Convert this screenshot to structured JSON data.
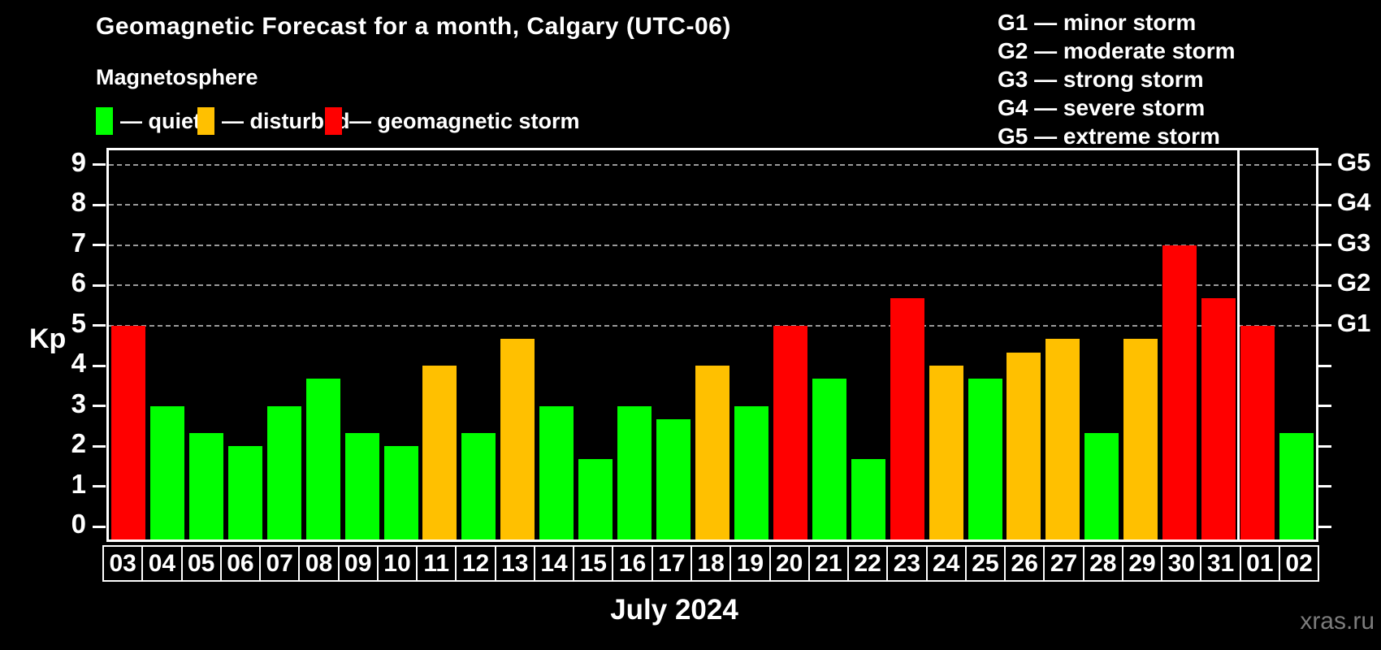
{
  "header": {
    "title": "Geomagnetic Forecast for a month, Calgary (UTC-06)",
    "subtitle": "Magnetosphere"
  },
  "legend": {
    "items": [
      {
        "name": "quiet",
        "label": "— quiet",
        "color": "#00ff00"
      },
      {
        "name": "disturbed",
        "label": "— disturbed",
        "color": "#ffc000"
      },
      {
        "name": "storm",
        "label": "— geomagnetic storm",
        "color": "#ff0000"
      }
    ]
  },
  "g_scale_legend": {
    "lines": [
      "G1 — minor storm",
      "G2 — moderate storm",
      "G3 — strong storm",
      "G4 — severe storm",
      "G5 — extreme storm"
    ]
  },
  "axes": {
    "y_label": "Kp",
    "y_ticks": [
      0,
      1,
      2,
      3,
      4,
      5,
      6,
      7,
      8,
      9
    ],
    "right_levels": [
      {
        "kp": 5,
        "label": "G1"
      },
      {
        "kp": 6,
        "label": "G2"
      },
      {
        "kp": 7,
        "label": "G3"
      },
      {
        "kp": 8,
        "label": "G4"
      },
      {
        "kp": 9,
        "label": "G5"
      }
    ],
    "x_label": "July 2024"
  },
  "watermark": "xras.ru",
  "chart_data": {
    "type": "bar",
    "title": "Geomagnetic Forecast for a month, Calgary (UTC-06)",
    "subtitle": "Magnetosphere",
    "xlabel": "July 2024",
    "ylabel": "Kp",
    "ylim": [
      0,
      9
    ],
    "grid": "horizontal dashed lines at Kp 5,6,7,8,9",
    "gridlines_at": [
      5,
      6,
      7,
      8,
      9
    ],
    "legend_position": "top",
    "categories": [
      "03",
      "04",
      "05",
      "06",
      "07",
      "08",
      "09",
      "10",
      "11",
      "12",
      "13",
      "14",
      "15",
      "16",
      "17",
      "18",
      "19",
      "20",
      "21",
      "22",
      "23",
      "24",
      "25",
      "26",
      "27",
      "28",
      "29",
      "30",
      "31",
      "01",
      "02"
    ],
    "values": [
      5,
      3,
      2.33,
      2,
      3,
      3.67,
      2.33,
      2,
      4,
      2.33,
      4.67,
      3,
      1.67,
      3,
      2.67,
      4,
      3,
      5,
      3.67,
      1.67,
      5.67,
      4,
      3.67,
      4.33,
      4.67,
      2.33,
      4.67,
      7,
      5.67,
      5,
      2.33
    ],
    "statuses": [
      "storm",
      "quiet",
      "quiet",
      "quiet",
      "quiet",
      "quiet",
      "quiet",
      "quiet",
      "disturbed",
      "quiet",
      "disturbed",
      "quiet",
      "quiet",
      "quiet",
      "quiet",
      "disturbed",
      "quiet",
      "storm",
      "quiet",
      "quiet",
      "storm",
      "disturbed",
      "quiet",
      "disturbed",
      "disturbed",
      "quiet",
      "disturbed",
      "storm",
      "storm",
      "storm",
      "quiet"
    ],
    "status_colors": {
      "quiet": "#00ff00",
      "disturbed": "#ffc000",
      "storm": "#ff0000"
    },
    "status_rule": "quiet: Kp < 4, disturbed: 4 <= Kp < 5, storm: Kp >= 5",
    "month_separator_after_index": 28
  }
}
